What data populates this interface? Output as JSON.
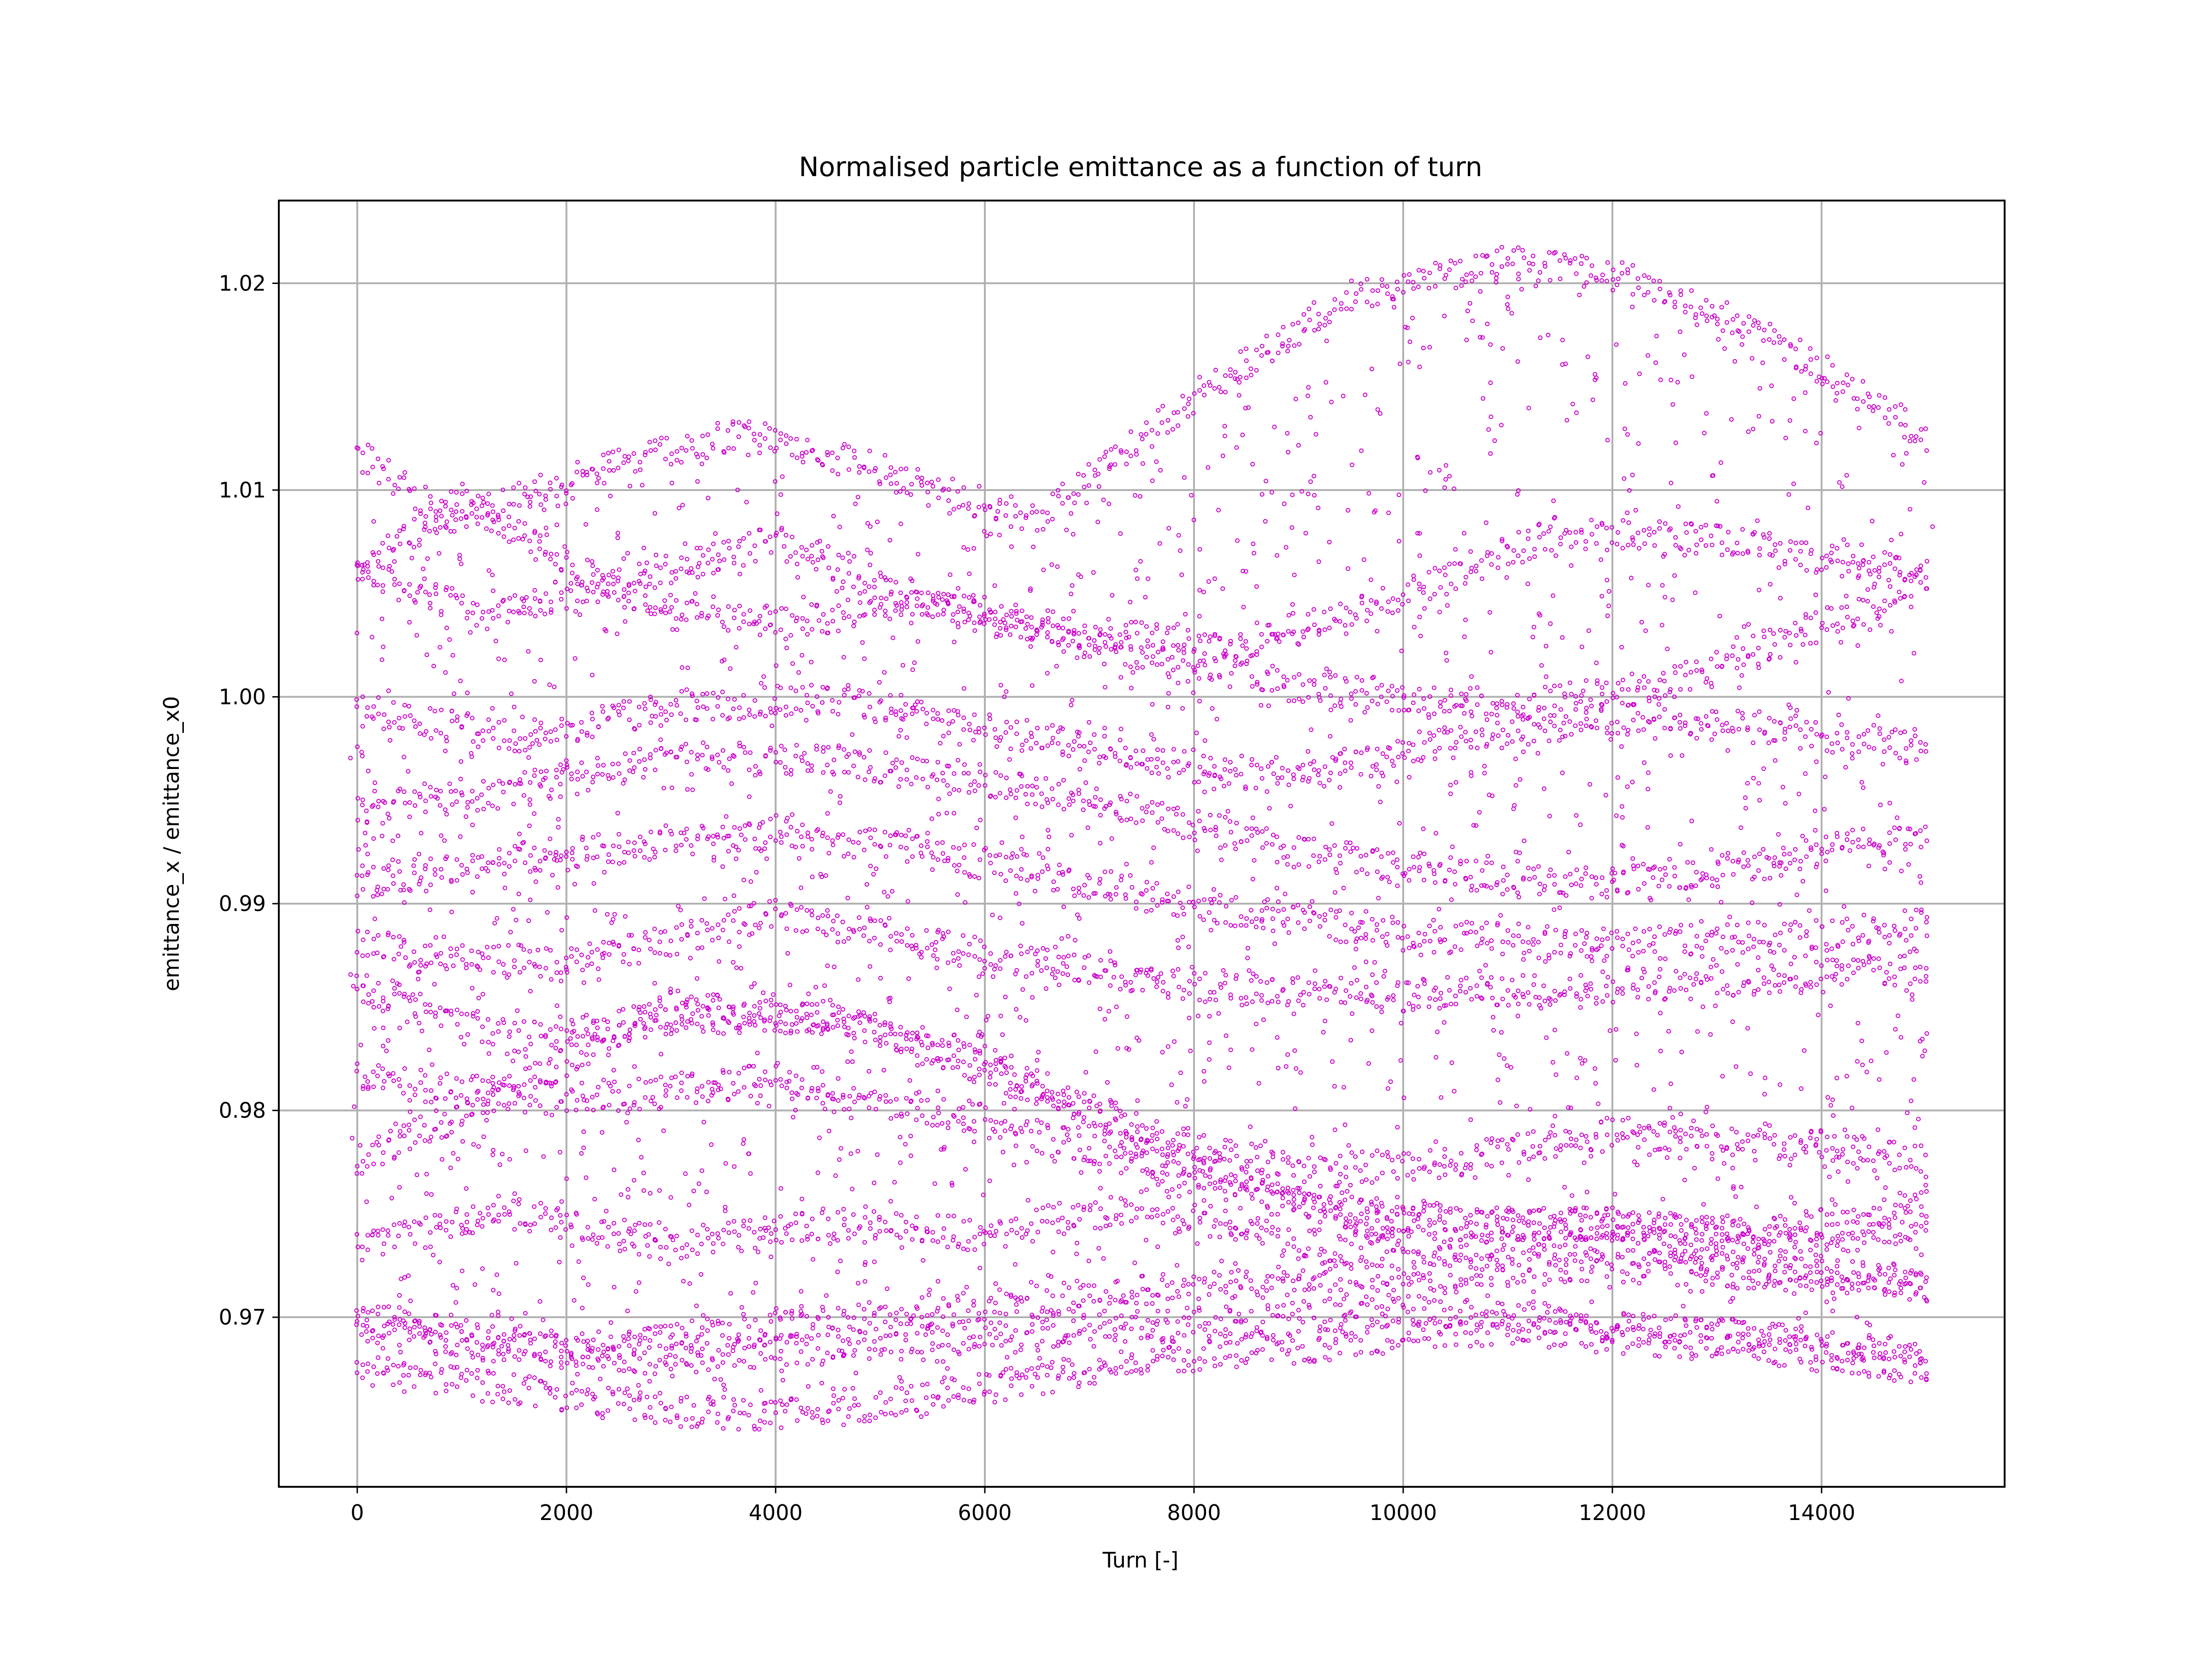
{
  "chart_data": {
    "type": "scatter",
    "title": "Normalised particle emittance as a function of turn",
    "xlabel": "Turn [-]",
    "ylabel": "emittance_x / emittance_x0",
    "xlim": [
      -750,
      15750
    ],
    "ylim": [
      0.9618,
      1.024
    ],
    "xticks": [
      0,
      2000,
      4000,
      6000,
      8000,
      10000,
      12000,
      14000
    ],
    "xtick_labels": [
      "0",
      "2000",
      "4000",
      "6000",
      "8000",
      "10000",
      "12000",
      "14000"
    ],
    "yticks": [
      0.97,
      0.98,
      0.99,
      1.0,
      1.01,
      1.02
    ],
    "ytick_labels": [
      "0.97",
      "0.98",
      "0.99",
      "1.00",
      "1.01",
      "1.02"
    ],
    "grid": true,
    "legend": "none",
    "marker": "small hollow circle",
    "colors": {
      "points": "#cc00cc",
      "grid": "#b0b0b0",
      "axes": "#000000"
    },
    "series": [
      {
        "turn_start": 0,
        "turn_end": 15000,
        "turn_step": 50,
        "bands": [
          {
            "points": [
              [
                0,
                1.0118
              ],
              [
                900,
                1.0085
              ],
              [
                2000,
                1.0105
              ],
              [
                3700,
                1.0128
              ],
              [
                5000,
                1.011
              ],
              [
                6500,
                1.0085
              ],
              [
                8000,
                1.0145
              ],
              [
                9500,
                1.0195
              ],
              [
                11000,
                1.021
              ],
              [
                12000,
                1.0205
              ],
              [
                13500,
                1.0175
              ],
              [
                15000,
                1.0125
              ]
            ]
          },
          {
            "points": [
              [
                0,
                1.0062
              ],
              [
                1200,
                1.004
              ],
              [
                2500,
                1.0055
              ],
              [
                4000,
                1.0075
              ],
              [
                5500,
                1.0045
              ],
              [
                7000,
                1.003
              ],
              [
                8500,
                1.0025
              ],
              [
                10000,
                1.005
              ],
              [
                11500,
                1.008
              ],
              [
                13000,
                1.0075
              ],
              [
                15000,
                1.006
              ]
            ]
          },
          {
            "points": [
              [
                0,
                1.006
              ],
              [
                1000,
                1.0095
              ],
              [
                2500,
                1.005
              ],
              [
                4000,
                1.0035
              ],
              [
                5500,
                1.0045
              ],
              [
                7000,
                1.0025
              ],
              [
                9000,
                1.0005
              ],
              [
                11000,
                0.9995
              ],
              [
                12500,
                1.0005
              ],
              [
                13500,
                1.0025
              ],
              [
                15000,
                1.0055
              ]
            ]
          },
          {
            "points": [
              [
                0,
                0.9994
              ],
              [
                1500,
                0.998
              ],
              [
                3000,
                0.9995
              ],
              [
                4500,
                1.0
              ],
              [
                6000,
                0.9985
              ],
              [
                7500,
                0.997
              ],
              [
                9000,
                0.996
              ],
              [
                10500,
                0.998
              ],
              [
                12000,
                0.999
              ],
              [
                13500,
                0.9985
              ],
              [
                15000,
                0.9975
              ]
            ]
          },
          {
            "points": [
              [
                0,
                0.9945
              ],
              [
                1500,
                0.9955
              ],
              [
                3000,
                0.997
              ],
              [
                4500,
                0.997
              ],
              [
                6000,
                0.996
              ],
              [
                7500,
                0.9945
              ],
              [
                9000,
                0.9925
              ],
              [
                10500,
                0.9915
              ],
              [
                12000,
                0.991
              ],
              [
                13500,
                0.992
              ],
              [
                15000,
                0.9935
              ]
            ]
          },
          {
            "points": [
              [
                0,
                0.991
              ],
              [
                2000,
                0.9925
              ],
              [
                4000,
                0.9935
              ],
              [
                6000,
                0.992
              ],
              [
                8000,
                0.99
              ],
              [
                10000,
                0.9885
              ],
              [
                12000,
                0.988
              ],
              [
                14000,
                0.9885
              ],
              [
                15000,
                0.989
              ]
            ]
          },
          {
            "points": [
              [
                0,
                0.988
              ],
              [
                2000,
                0.987
              ],
              [
                4000,
                0.9895
              ],
              [
                6000,
                0.9875
              ],
              [
                8000,
                0.986
              ],
              [
                10000,
                0.9855
              ],
              [
                12000,
                0.986
              ],
              [
                14000,
                0.9865
              ],
              [
                15000,
                0.987
              ]
            ]
          },
          {
            "points": [
              [
                0,
                0.986
              ],
              [
                1500,
                0.9835
              ],
              [
                3000,
                0.9845
              ],
              [
                4500,
                0.9845
              ],
              [
                6000,
                0.9825
              ],
              [
                7500,
                0.979
              ],
              [
                9000,
                0.977
              ],
              [
                10500,
                0.9775
              ],
              [
                12000,
                0.979
              ],
              [
                13500,
                0.9785
              ],
              [
                15000,
                0.9775
              ]
            ]
          },
          {
            "points": [
              [
                0,
                0.9775
              ],
              [
                1500,
                0.981
              ],
              [
                3000,
                0.985
              ],
              [
                4500,
                0.9845
              ],
              [
                6000,
                0.982
              ],
              [
                7500,
                0.9785
              ],
              [
                9000,
                0.9755
              ],
              [
                10500,
                0.9745
              ],
              [
                12000,
                0.9745
              ],
              [
                13500,
                0.974
              ],
              [
                15000,
                0.9755
              ]
            ]
          },
          {
            "points": [
              [
                0,
                0.9815
              ],
              [
                2000,
                0.9805
              ],
              [
                4000,
                0.9815
              ],
              [
                6000,
                0.9795
              ],
              [
                8000,
                0.9765
              ],
              [
                10000,
                0.9745
              ],
              [
                12000,
                0.9745
              ],
              [
                14000,
                0.9735
              ],
              [
                15000,
                0.9745
              ]
            ]
          },
          {
            "points": [
              [
                0,
                0.9735
              ],
              [
                1500,
                0.975
              ],
              [
                3000,
                0.9735
              ],
              [
                4500,
                0.9745
              ],
              [
                6000,
                0.974
              ],
              [
                7500,
                0.9755
              ],
              [
                9000,
                0.9735
              ],
              [
                10500,
                0.973
              ],
              [
                12000,
                0.9735
              ],
              [
                13500,
                0.9725
              ],
              [
                15000,
                0.9715
              ]
            ]
          },
          {
            "points": [
              [
                0,
                0.97
              ],
              [
                2000,
                0.9685
              ],
              [
                4000,
                0.9695
              ],
              [
                6000,
                0.9705
              ],
              [
                8000,
                0.9715
              ],
              [
                10000,
                0.972
              ],
              [
                12000,
                0.9725
              ],
              [
                14000,
                0.972
              ],
              [
                15000,
                0.9715
              ]
            ]
          },
          {
            "points": [
              [
                0,
                0.9695
              ],
              [
                1500,
                0.9685
              ],
              [
                3000,
                0.968
              ],
              [
                4500,
                0.9685
              ],
              [
                6000,
                0.969
              ],
              [
                7500,
                0.9695
              ],
              [
                9000,
                0.97
              ],
              [
                10500,
                0.9705
              ],
              [
                12000,
                0.9695
              ],
              [
                13500,
                0.969
              ],
              [
                15000,
                0.968
              ]
            ]
          },
          {
            "points": [
              [
                0,
                0.9675
              ],
              [
                1500,
                0.9665
              ],
              [
                3000,
                0.9655
              ],
              [
                4000,
                0.9652
              ],
              [
                5500,
                0.966
              ],
              [
                7000,
                0.9675
              ],
              [
                8000,
                0.968
              ],
              [
                9500,
                0.9688
              ],
              [
                11000,
                0.9695
              ],
              [
                12000,
                0.969
              ],
              [
                13500,
                0.9685
              ],
              [
                15000,
                0.9675
              ]
            ]
          }
        ]
      }
    ]
  }
}
